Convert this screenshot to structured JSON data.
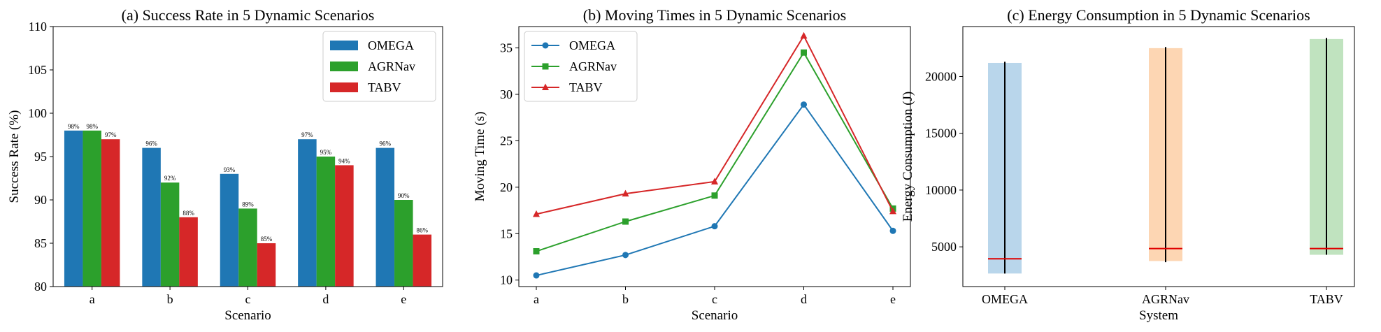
{
  "chart_data": [
    {
      "type": "bar",
      "title": "(a) Success Rate in 5 Dynamic Scenarios",
      "xlabel": "Scenario",
      "ylabel": "Success Rate (%)",
      "categories": [
        "a",
        "b",
        "c",
        "d",
        "e"
      ],
      "ylim": [
        80,
        110
      ],
      "yticks": [
        80,
        85,
        90,
        95,
        100,
        105,
        110
      ],
      "legend_position": "top-right",
      "series": [
        {
          "name": "OMEGA",
          "color": "#1f77b4",
          "values": [
            98,
            96,
            93,
            97,
            96
          ],
          "labels": [
            "98%",
            "96%",
            "93%",
            "97%",
            "96%"
          ]
        },
        {
          "name": "AGRNav",
          "color": "#2ca02c",
          "values": [
            98,
            92,
            89,
            95,
            90
          ],
          "labels": [
            "98%",
            "92%",
            "89%",
            "95%",
            "90%"
          ]
        },
        {
          "name": "TABV",
          "color": "#d62728",
          "values": [
            97,
            88,
            85,
            94,
            86
          ],
          "labels": [
            "97%",
            "88%",
            "85%",
            "94%",
            "86%"
          ]
        }
      ]
    },
    {
      "type": "line",
      "title": "(b) Moving Times in 5 Dynamic Scenarios",
      "xlabel": "Scenario",
      "ylabel": "Moving Time (s)",
      "categories": [
        "a",
        "b",
        "c",
        "d",
        "e"
      ],
      "ylim": [
        9.3,
        37.3
      ],
      "yticks": [
        10,
        15,
        20,
        25,
        30,
        35
      ],
      "legend_position": "top-left",
      "series": [
        {
          "name": "OMEGA",
          "color": "#1f77b4",
          "marker": "circle",
          "values": [
            10.5,
            12.7,
            15.8,
            28.9,
            15.3
          ]
        },
        {
          "name": "AGRNav",
          "color": "#2ca02c",
          "marker": "square",
          "values": [
            13.1,
            16.3,
            19.1,
            34.5,
            17.7
          ]
        },
        {
          "name": "TABV",
          "color": "#d62728",
          "marker": "triangle",
          "values": [
            17.1,
            19.3,
            20.6,
            36.3,
            17.4
          ]
        }
      ]
    },
    {
      "type": "bar",
      "title": "(c) Energy Consumption in 5 Dynamic Scenarios",
      "xlabel": "System",
      "ylabel": "Energy Consumption (J)",
      "categories": [
        "OMEGA",
        "AGRNav",
        "TABV"
      ],
      "ylim": [
        1500,
        24400
      ],
      "yticks": [
        5000,
        10000,
        15000,
        20000
      ],
      "series": [
        {
          "name": "Energy Consumption",
          "colors": [
            "#b9d6eb",
            "#fdd6b3",
            "#c0e3bf"
          ],
          "bar_bottom": [
            2650,
            3750,
            4300
          ],
          "bar_top": [
            21200,
            22500,
            23300
          ],
          "whisker_min": [
            2650,
            3650,
            4300
          ],
          "whisker_max": [
            21300,
            22600,
            23400
          ],
          "median": [
            3950,
            4850,
            4850
          ]
        }
      ]
    }
  ]
}
